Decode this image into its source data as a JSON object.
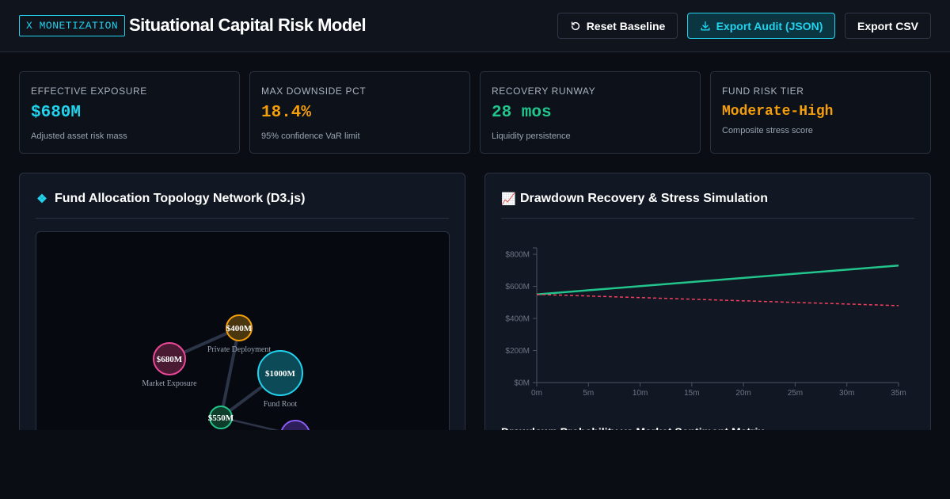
{
  "header": {
    "badge": "X MONETIZATION",
    "title": "Situational Capital Risk Model",
    "buttons": {
      "reset": "Reset Baseline",
      "export_json": "Export Audit (JSON)",
      "export_csv": "Export CSV"
    }
  },
  "kpis": [
    {
      "label": "Effective Exposure",
      "value": "$680M",
      "sub": "Adjusted asset risk mass",
      "color": "#22d3ee"
    },
    {
      "label": "Max Downside PCT",
      "value": "18.4%",
      "sub": "95% confidence VaR limit",
      "color": "#f59e0b"
    },
    {
      "label": "Recovery Runway",
      "value": "28 mos",
      "sub": "Liquidity persistence",
      "color": "#22c58b"
    },
    {
      "label": "Fund Risk Tier",
      "value": "Moderate-High",
      "sub": "Composite stress score",
      "color": "#f59e0b"
    }
  ],
  "network_panel": {
    "title": "Fund Allocation Topology Network (D3.js)",
    "icon": "diamond-icon",
    "nodes": [
      {
        "id": "root",
        "value": "$1000M",
        "label": "Fund Root",
        "color": "#22d3ee"
      },
      {
        "id": "private",
        "value": "$400M",
        "label": "Private Deployment",
        "color": "#f59e0b"
      },
      {
        "id": "market",
        "value": "$680M",
        "label": "Market Exposure",
        "color": "#ec4899"
      },
      {
        "id": "mid",
        "value": "$550M",
        "label": "",
        "color": "#22c58b"
      },
      {
        "id": "purple",
        "value": "",
        "label": "",
        "color": "#8b5cf6"
      }
    ]
  },
  "chart_panel": {
    "title": "Drawdown Recovery & Stress Simulation",
    "icon": "chart-increasing-icon",
    "sub_heading": "Drawdown Probability vs Market Sentiment Matrix"
  },
  "chart_data": {
    "type": "line",
    "x": [
      0,
      35
    ],
    "xlabel": "",
    "ylabel": "",
    "x_ticks": [
      "0m",
      "5m",
      "10m",
      "15m",
      "20m",
      "25m",
      "30m",
      "35m"
    ],
    "y_ticks": [
      "$0M",
      "$200M",
      "$400M",
      "$600M",
      "$800M"
    ],
    "xlim": [
      0,
      35
    ],
    "ylim": [
      0,
      840
    ],
    "series": [
      {
        "values": [
          550,
          730
        ],
        "color": "#22c58b",
        "style": "solid"
      },
      {
        "values": [
          550,
          480
        ],
        "color": "#f43f5e",
        "style": "dashed"
      }
    ]
  }
}
